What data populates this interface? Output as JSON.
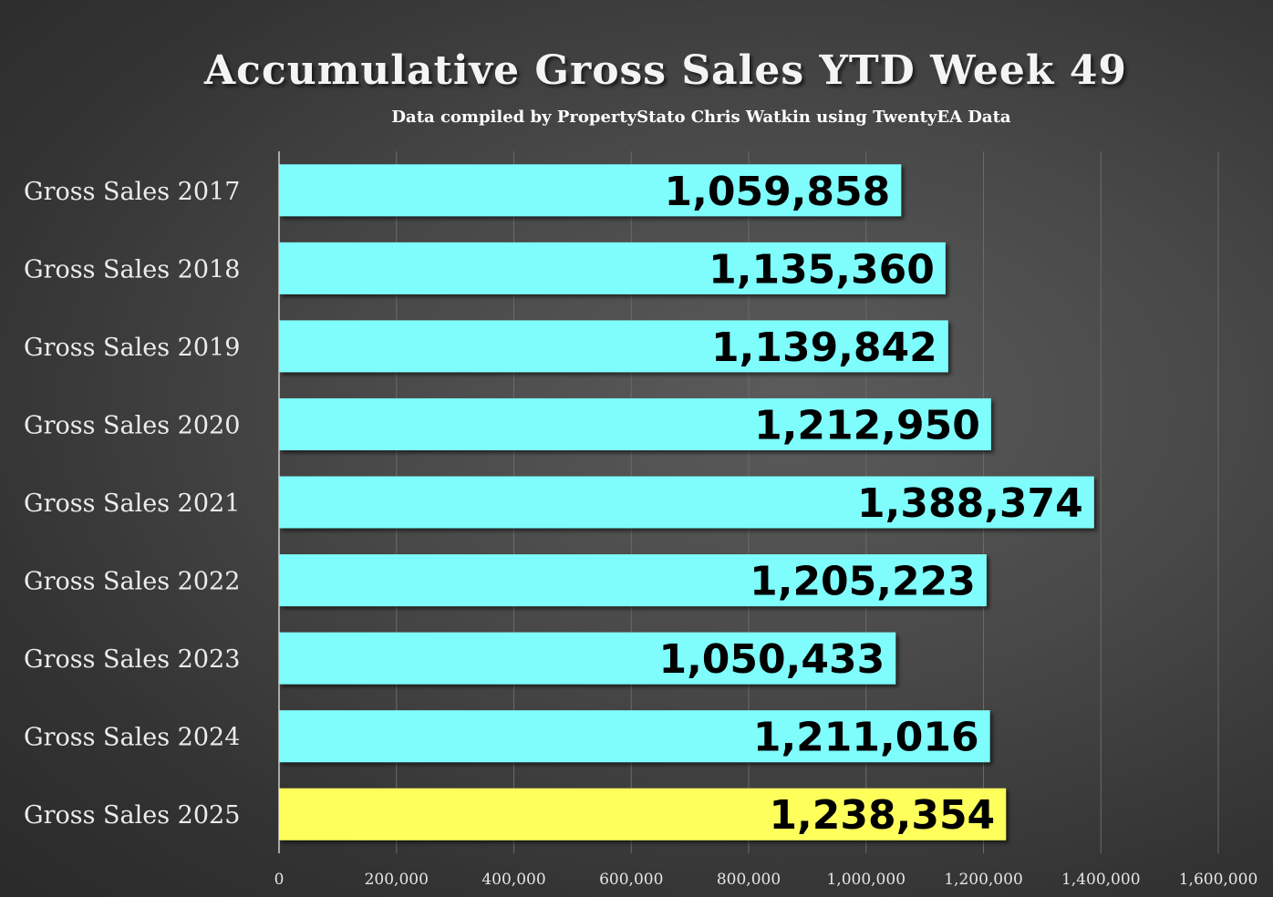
{
  "chart_data": {
    "type": "bar",
    "orientation": "horizontal",
    "title": "Accumulative Gross Sales YTD Week 49",
    "subtitle": "Data compiled by PropertyStato Chris Watkin using TwentyEA Data",
    "categories": [
      "Gross Sales 2017",
      "Gross Sales 2018",
      "Gross Sales 2019",
      "Gross Sales 2020",
      "Gross Sales 2021",
      "Gross Sales 2022",
      "Gross Sales 2023",
      "Gross Sales 2024",
      "Gross Sales 2025"
    ],
    "values": [
      1059858,
      1135360,
      1139842,
      1212950,
      1388374,
      1205223,
      1050433,
      1211016,
      1238354
    ],
    "value_labels": [
      "1,059,858",
      "1,135,360",
      "1,139,842",
      "1,212,950",
      "1,388,374",
      "1,205,223",
      "1,050,433",
      "1,211,016",
      "1,238,354"
    ],
    "bar_colors": [
      "#7ffcfc",
      "#7ffcfc",
      "#7ffcfc",
      "#7ffcfc",
      "#7ffcfc",
      "#7ffcfc",
      "#7ffcfc",
      "#7ffcfc",
      "#ffff5c"
    ],
    "xlim": [
      0,
      1600000
    ],
    "xticks": [
      0,
      200000,
      400000,
      600000,
      800000,
      1000000,
      1200000,
      1400000,
      1600000
    ],
    "xtick_labels": [
      "0",
      "200,000",
      "400,000",
      "600,000",
      "800,000",
      "1,000,000",
      "1,200,000",
      "1,400,000",
      "1,600,000"
    ],
    "grid": true,
    "legend": "none",
    "colors": {
      "background": "#444444",
      "highlight": "#ffff5c",
      "bars": "#7ffcfc",
      "grid": "#6a6a6a"
    }
  }
}
